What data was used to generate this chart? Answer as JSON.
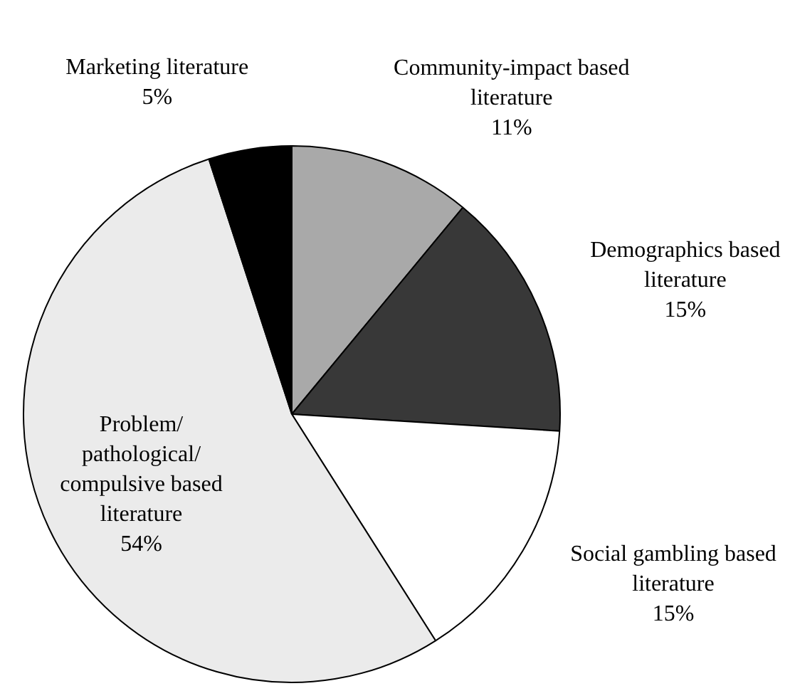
{
  "chart_data": {
    "type": "pie",
    "categories": [
      "Community-impact based literature",
      "Demographics based literature",
      "Social gambling based literature",
      "Problem/pathological/compulsive based literature",
      "Marketing literature"
    ],
    "values": [
      11,
      15,
      15,
      54,
      5
    ],
    "colors": [
      "#a9a9a9",
      "#383838",
      "#ffffff",
      "#ebebeb",
      "#000000"
    ],
    "value_labels": [
      "11%",
      "15%",
      "15%",
      "54%",
      "5%"
    ],
    "legend": false
  }
}
